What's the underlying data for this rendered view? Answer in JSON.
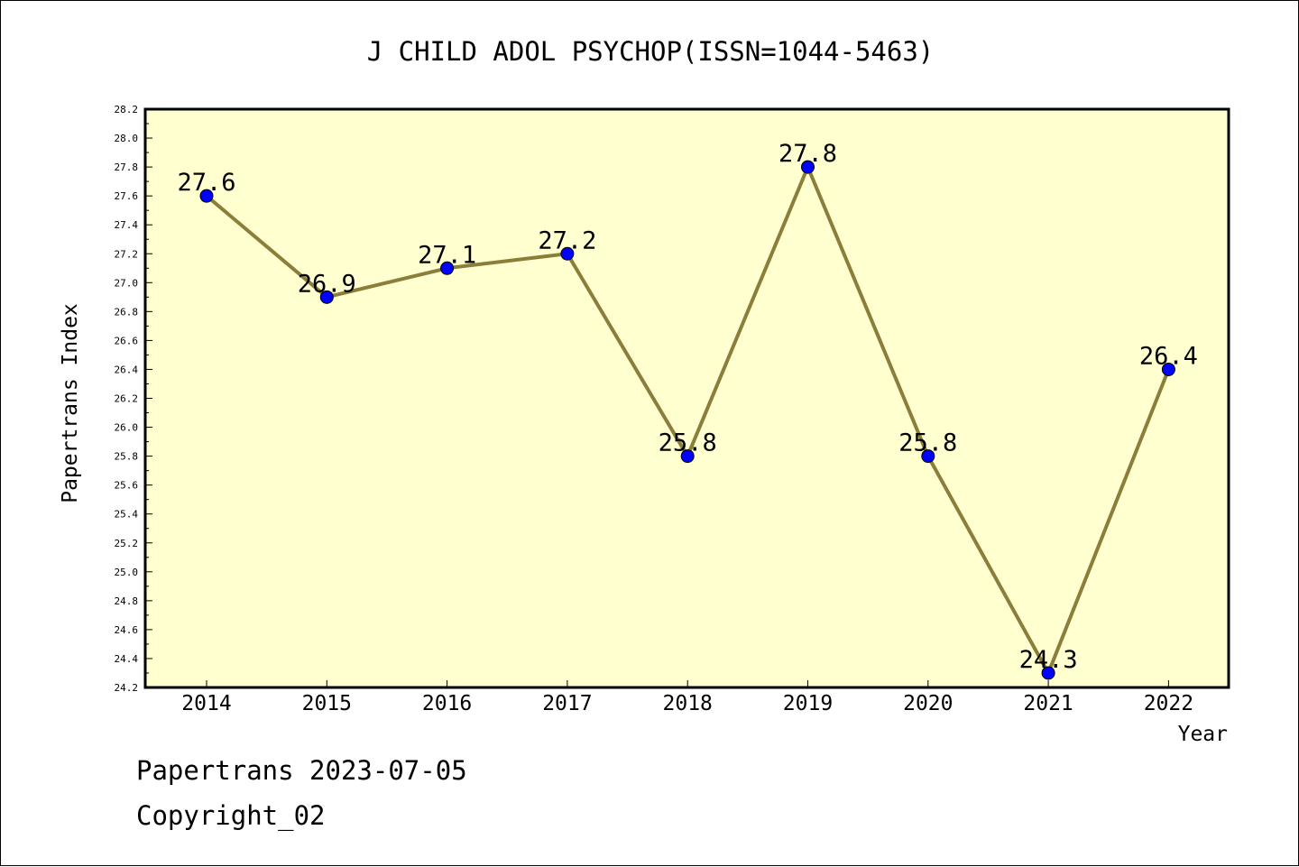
{
  "chart_data": {
    "type": "line",
    "title": "J CHILD ADOL PSYCHOP(ISSN=1044-5463)",
    "xlabel": "Year",
    "ylabel": "Papertrans Index",
    "categories": [
      "2014",
      "2015",
      "2016",
      "2017",
      "2018",
      "2019",
      "2020",
      "2021",
      "2022"
    ],
    "values": [
      27.6,
      26.9,
      27.1,
      27.2,
      25.8,
      27.8,
      25.8,
      24.3,
      26.4
    ],
    "data_labels": [
      "27.6",
      "26.9",
      "27.1",
      "27.2",
      "25.8",
      "27.8",
      "25.8",
      "24.3",
      "26.4"
    ],
    "ylim": [
      24.2,
      28.2
    ],
    "yticks": [
      "24.2",
      "24.4",
      "24.6",
      "24.8",
      "25.0",
      "25.2",
      "25.4",
      "25.6",
      "25.8",
      "26.0",
      "26.2",
      "26.4",
      "26.6",
      "26.8",
      "27.0",
      "27.2",
      "27.4",
      "27.6",
      "27.8",
      "28.0",
      "28.2"
    ],
    "grid": false,
    "colors": {
      "plot_background": "#ffffd0",
      "line": "#8b7d3a",
      "marker": "#0000ff"
    }
  },
  "footer": {
    "line1": "Papertrans 2023-07-05",
    "line2": "Copyright_02"
  }
}
